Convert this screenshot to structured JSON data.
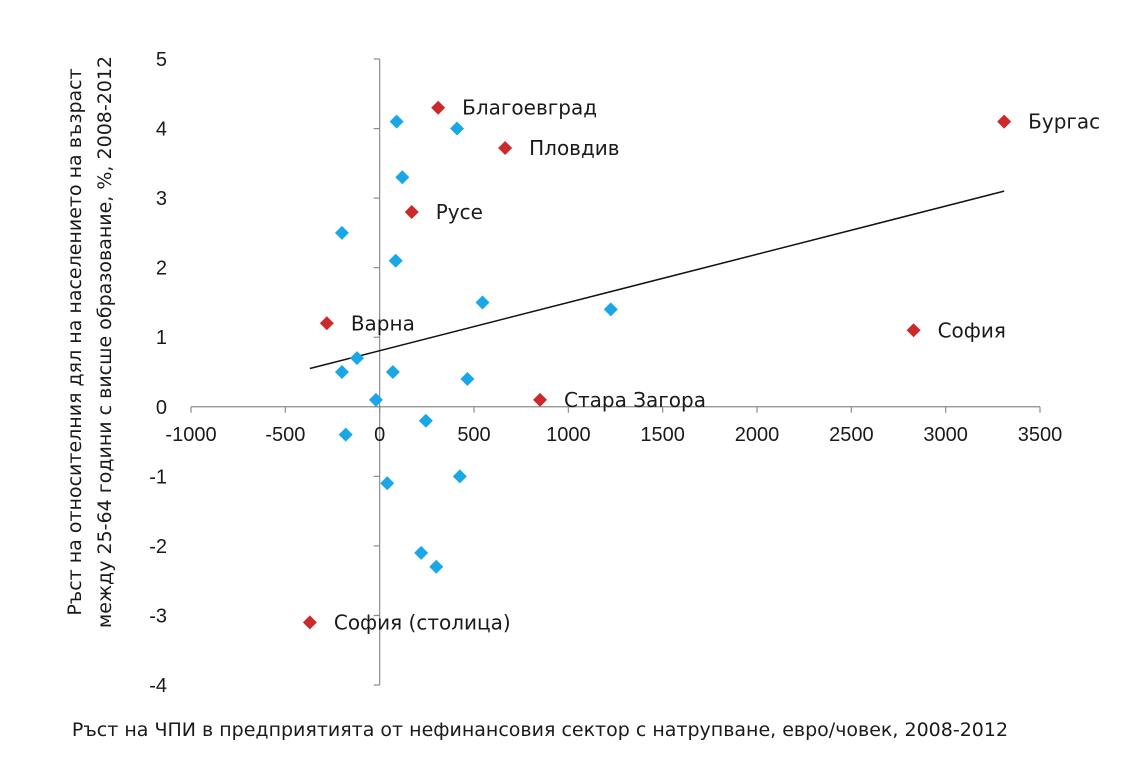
{
  "chart_data": {
    "type": "scatter",
    "xlabel": "Ръст на ЧПИ в предприятията от нефинансовия сектор с натрупване, евро/човек, 2008-2012",
    "ylabel_line1": "Ръст на относителния дял на населението на възраст",
    "ylabel_line2": "между 25-64 години с висше образование, %, 2008-2012",
    "xlim": [
      -1000,
      3500
    ],
    "ylim": [
      -4,
      5
    ],
    "x_ticks": [
      "-1000",
      "-500",
      "0",
      "500",
      "1000",
      "1500",
      "2000",
      "2500",
      "3000",
      "3500"
    ],
    "y_ticks": [
      "5",
      "4",
      "3",
      "2",
      "1",
      "0",
      "-1",
      "-2",
      "-3",
      "-4"
    ],
    "x_tick_values": [
      -1000,
      -500,
      0,
      500,
      1000,
      1500,
      2000,
      2500,
      3000,
      3500
    ],
    "y_tick_values": [
      5,
      4,
      3,
      2,
      1,
      0,
      -1,
      -2,
      -3,
      -4
    ],
    "series": [
      {
        "color": "#1aa7e8",
        "marker": "diamond",
        "points": [
          {
            "x": 90,
            "y": 4.1
          },
          {
            "x": 410,
            "y": 4.0
          },
          {
            "x": 120,
            "y": 3.3
          },
          {
            "x": -200,
            "y": 2.5
          },
          {
            "x": 85,
            "y": 2.1
          },
          {
            "x": 545,
            "y": 1.5
          },
          {
            "x": 1225,
            "y": 1.4
          },
          {
            "x": -120,
            "y": 0.7
          },
          {
            "x": -200,
            "y": 0.5
          },
          {
            "x": 70,
            "y": 0.5
          },
          {
            "x": 465,
            "y": 0.4
          },
          {
            "x": -20,
            "y": 0.1
          },
          {
            "x": -180,
            "y": -0.4
          },
          {
            "x": 245,
            "y": -0.2
          },
          {
            "x": 40,
            "y": -1.1
          },
          {
            "x": 425,
            "y": -1.0
          },
          {
            "x": 220,
            "y": -2.1
          },
          {
            "x": 300,
            "y": -2.3
          }
        ]
      },
      {
        "color": "#cc2a2a",
        "marker": "diamond",
        "points": [
          {
            "x": 310,
            "y": 4.3,
            "label": "Благоевград"
          },
          {
            "x": 3310,
            "y": 4.1,
            "label": "Бургас"
          },
          {
            "x": 665,
            "y": 3.72,
            "label": "Пловдив"
          },
          {
            "x": 170,
            "y": 2.8,
            "label": "Русе"
          },
          {
            "x": -280,
            "y": 1.2,
            "label": "Варна"
          },
          {
            "x": 2830,
            "y": 1.1,
            "label": "София"
          },
          {
            "x": 850,
            "y": 0.1,
            "label": "Стара Загора"
          },
          {
            "x": -370,
            "y": -3.1,
            "label": "София (столица)"
          }
        ]
      }
    ],
    "trendline": {
      "x": [
        -370,
        3310
      ],
      "y": [
        0.55,
        3.1
      ],
      "color": "#111111"
    },
    "grid": false,
    "legend": "none"
  }
}
